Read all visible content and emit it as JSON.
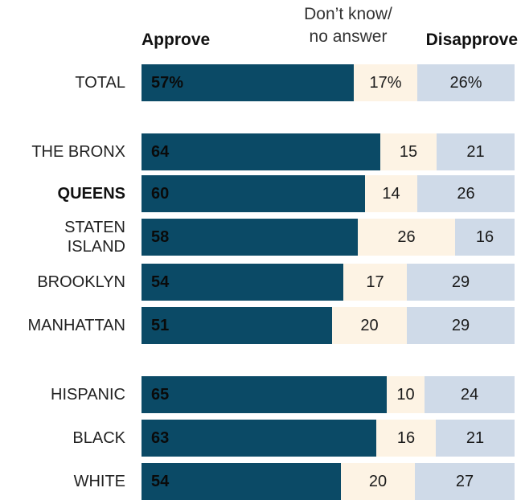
{
  "legend": {
    "approve": "Approve",
    "dontknow_line1": "Don’t know/",
    "dontknow_line2": "no answer",
    "disapprove": "Disapprove"
  },
  "chart_data": {
    "type": "bar",
    "stacked": true,
    "orientation": "horizontal",
    "series_names": [
      "Approve",
      "Don’t know/no answer",
      "Disapprove"
    ],
    "colors": {
      "approve": "#0b4a66",
      "dontknow": "#fdf3e4",
      "disapprove": "#cfdae8"
    },
    "rows": [
      {
        "label": "TOTAL",
        "bold": false,
        "group": 0,
        "approve": 57,
        "dontknow": 17,
        "disapprove": 26,
        "approve_label": "57%",
        "dontknow_label": "17%",
        "disapprove_label": "26%"
      },
      {
        "label": "THE BRONX",
        "bold": false,
        "group": 1,
        "approve": 64,
        "dontknow": 15,
        "disapprove": 21,
        "approve_label": "64",
        "dontknow_label": "15",
        "disapprove_label": "21"
      },
      {
        "label": "QUEENS",
        "bold": true,
        "group": 1,
        "approve": 60,
        "dontknow": 14,
        "disapprove": 26,
        "approve_label": "60",
        "dontknow_label": "14",
        "disapprove_label": "26"
      },
      {
        "label_lines": [
          "STATEN",
          "ISLAND"
        ],
        "bold": false,
        "group": 1,
        "approve": 58,
        "dontknow": 26,
        "disapprove": 16,
        "approve_label": "58",
        "dontknow_label": "26",
        "disapprove_label": "16"
      },
      {
        "label": "BROOKLYN",
        "bold": false,
        "group": 1,
        "approve": 54,
        "dontknow": 17,
        "disapprove": 29,
        "approve_label": "54",
        "dontknow_label": "17",
        "disapprove_label": "29"
      },
      {
        "label": "MANHATTAN",
        "bold": false,
        "group": 1,
        "approve": 51,
        "dontknow": 20,
        "disapprove": 29,
        "approve_label": "51",
        "dontknow_label": "20",
        "disapprove_label": "29"
      },
      {
        "label": "HISPANIC",
        "bold": false,
        "group": 2,
        "approve": 65,
        "dontknow": 10,
        "disapprove": 24,
        "approve_label": "65",
        "dontknow_label": "10",
        "disapprove_label": "24"
      },
      {
        "label": "BLACK",
        "bold": false,
        "group": 2,
        "approve": 63,
        "dontknow": 16,
        "disapprove": 21,
        "approve_label": "63",
        "dontknow_label": "16",
        "disapprove_label": "21"
      },
      {
        "label": "WHITE",
        "bold": false,
        "group": 2,
        "approve": 54,
        "dontknow": 20,
        "disapprove": 27,
        "approve_label": "54",
        "dontknow_label": "20",
        "disapprove_label": "27"
      }
    ]
  }
}
